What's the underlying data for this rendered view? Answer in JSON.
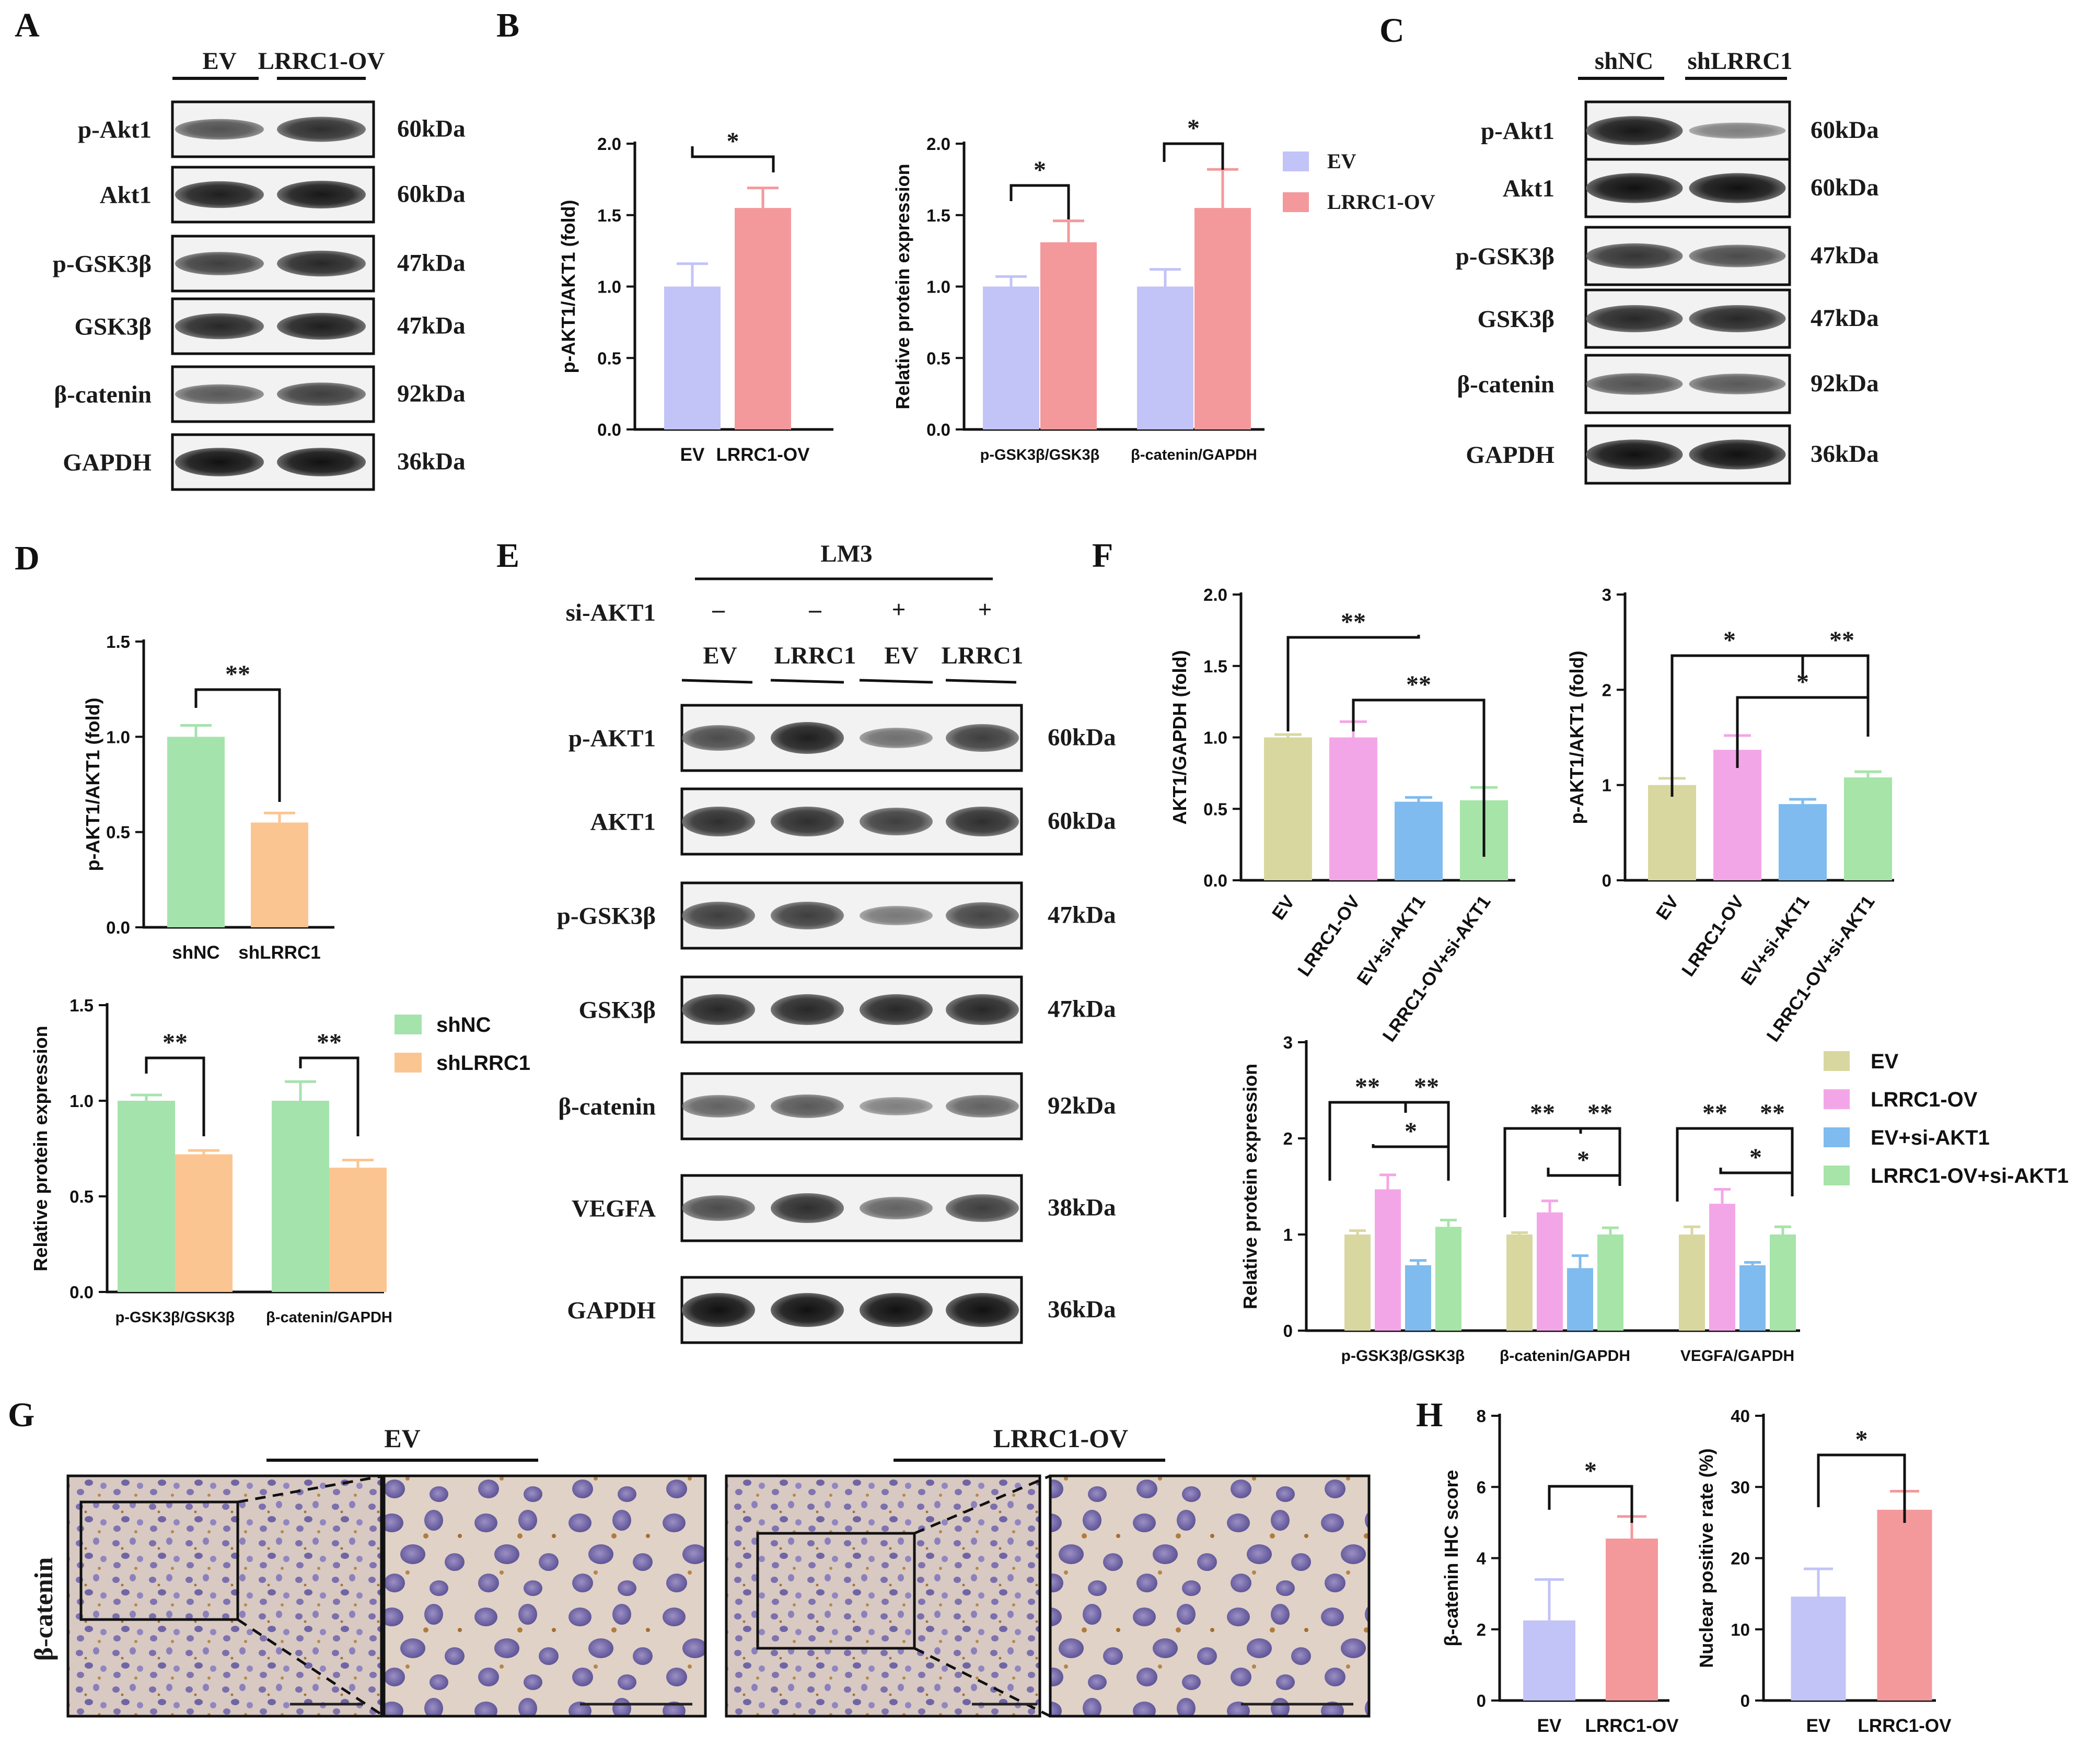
{
  "colors": {
    "ev_purple": "#c2c3f7",
    "ov_red": "#f3999c",
    "shnc_green": "#a5e3ad",
    "shlrrc1_orange": "#fbc591",
    "f_ev": "#d9d7a0",
    "f_ov": "#f3a6e7",
    "f_evsi": "#7fbbee",
    "f_ovsi": "#a6e4a8"
  },
  "panels": {
    "A": "A",
    "B": "B",
    "C": "C",
    "D": "D",
    "E": "E",
    "F": "F",
    "G": "G",
    "H": "H"
  },
  "blotA": {
    "groups": [
      "EV",
      "LRRC1-OV"
    ],
    "rows": [
      {
        "label": "p-Akt1",
        "kda": "60kDa"
      },
      {
        "label": "Akt1",
        "kda": "60kDa"
      },
      {
        "label": "p-GSK3β",
        "kda": "47kDa"
      },
      {
        "label": "GSK3β",
        "kda": "47kDa"
      },
      {
        "label": "β-catenin",
        "kda": "92kDa"
      },
      {
        "label": "GAPDH",
        "kda": "36kDa"
      }
    ]
  },
  "blotC": {
    "groups": [
      "shNC",
      "shLRRC1"
    ],
    "rows": [
      {
        "label": "p-Akt1",
        "kda": "60kDa"
      },
      {
        "label": "Akt1",
        "kda": "60kDa"
      },
      {
        "label": "p-GSK3β",
        "kda": "47kDa"
      },
      {
        "label": "GSK3β",
        "kda": "47kDa"
      },
      {
        "label": "β-catenin",
        "kda": "92kDa"
      },
      {
        "label": "GAPDH",
        "kda": "36kDa"
      }
    ]
  },
  "blotE": {
    "cell_line": "LM3",
    "treatment_label": "si-AKT1",
    "treatment_signs": [
      "–",
      "–",
      "+",
      "+"
    ],
    "lanes": [
      "EV",
      "LRRC1",
      "EV",
      "LRRC1"
    ],
    "rows": [
      {
        "label": "p-AKT1",
        "kda": "60kDa"
      },
      {
        "label": "AKT1",
        "kda": "60kDa"
      },
      {
        "label": "p-GSK3β",
        "kda": "47kDa"
      },
      {
        "label": "GSK3β",
        "kda": "47kDa"
      },
      {
        "label": "β-catenin",
        "kda": "92kDa"
      },
      {
        "label": "VEGFA",
        "kda": "38kDa"
      },
      {
        "label": "GAPDH",
        "kda": "36kDa"
      }
    ]
  },
  "ihcG": {
    "stain_label": "β-catenin",
    "groups": [
      "EV",
      "LRRC1-OV"
    ]
  },
  "legends": {
    "B": [
      "EV",
      "LRRC1-OV"
    ],
    "D": [
      "shNC",
      "shLRRC1"
    ],
    "F": [
      "EV",
      "LRRC1-OV",
      "EV+si-AKT1",
      "LRRC1-OV+si-AKT1"
    ]
  },
  "chart_data": [
    {
      "id": "B1",
      "type": "bar",
      "title": "",
      "ylabel": "p-AKT1/AKT1 (fold)",
      "ylim": [
        0,
        2.0
      ],
      "yticks": [
        "0.0",
        "0.5",
        "1.0",
        "1.5",
        "2.0"
      ],
      "categories": [
        "EV",
        "LRRC1-OV"
      ],
      "values": [
        1.0,
        1.55
      ],
      "errors": [
        0.16,
        0.14
      ],
      "significance": [
        {
          "from": "EV",
          "to": "LRRC1-OV",
          "label": "*"
        }
      ]
    },
    {
      "id": "B2",
      "type": "bar",
      "title": "",
      "ylabel": "Relative protein expression",
      "ylim": [
        0,
        2.0
      ],
      "yticks": [
        "0.0",
        "0.5",
        "1.0",
        "1.5",
        "2.0"
      ],
      "categories": [
        "p-GSK3β/GSK3β",
        "β-catenin/GAPDH"
      ],
      "series": [
        {
          "name": "EV",
          "values": [
            1.0,
            1.0
          ],
          "errors": [
            0.07,
            0.12
          ]
        },
        {
          "name": "LRRC1-OV",
          "values": [
            1.31,
            1.55
          ],
          "errors": [
            0.15,
            0.27
          ]
        }
      ],
      "significance": [
        {
          "group": "p-GSK3β/GSK3β",
          "label": "*"
        },
        {
          "group": "β-catenin/GAPDH",
          "label": "*"
        }
      ]
    },
    {
      "id": "D1",
      "type": "bar",
      "title": "",
      "ylabel": "p-AKT1/AKT1 (fold)",
      "ylim": [
        0,
        1.5
      ],
      "yticks": [
        "0.0",
        "0.5",
        "1.0",
        "1.5"
      ],
      "categories": [
        "shNC",
        "shLRRC1"
      ],
      "values": [
        1.0,
        0.55
      ],
      "errors": [
        0.06,
        0.05
      ],
      "significance": [
        {
          "from": "shNC",
          "to": "shLRRC1",
          "label": "**"
        }
      ]
    },
    {
      "id": "D2",
      "type": "bar",
      "title": "",
      "ylabel": "Relative protein expression",
      "ylim": [
        0,
        1.5
      ],
      "yticks": [
        "0.0",
        "0.5",
        "1.0",
        "1.5"
      ],
      "categories": [
        "p-GSK3β/GSK3β",
        "β-catenin/GAPDH"
      ],
      "series": [
        {
          "name": "shNC",
          "values": [
            1.0,
            1.0
          ],
          "errors": [
            0.03,
            0.1
          ]
        },
        {
          "name": "shLRRC1",
          "values": [
            0.72,
            0.65
          ],
          "errors": [
            0.02,
            0.04
          ]
        }
      ],
      "significance": [
        {
          "group": "p-GSK3β/GSK3β",
          "label": "**"
        },
        {
          "group": "β-catenin/GAPDH",
          "label": "**"
        }
      ]
    },
    {
      "id": "F1",
      "type": "bar",
      "title": "",
      "ylabel": "AKT1/GAPDH (fold)",
      "ylim": [
        0,
        2.0
      ],
      "yticks": [
        "0.0",
        "0.5",
        "1.0",
        "1.5",
        "2.0"
      ],
      "categories": [
        "EV",
        "LRRC1-OV",
        "EV+si-AKT1",
        "LRRC1-OV+si-AKT1"
      ],
      "values": [
        1.0,
        1.0,
        0.55,
        0.56
      ],
      "errors": [
        0.02,
        0.11,
        0.03,
        0.09
      ],
      "significance": [
        {
          "from": "EV",
          "to": "EV+si-AKT1",
          "label": "**"
        },
        {
          "from": "LRRC1-OV",
          "to": "LRRC1-OV+si-AKT1",
          "label": "**"
        }
      ]
    },
    {
      "id": "F2",
      "type": "bar",
      "title": "",
      "ylabel": "p-AKT1/AKT1 (fold)",
      "ylim": [
        0,
        3
      ],
      "yticks": [
        "0",
        "1",
        "2",
        "3"
      ],
      "categories": [
        "EV",
        "LRRC1-OV",
        "EV+si-AKT1",
        "LRRC1-OV+si-AKT1"
      ],
      "values": [
        1.0,
        1.37,
        0.8,
        1.08
      ],
      "errors": [
        0.07,
        0.15,
        0.05,
        0.06
      ],
      "significance": [
        {
          "from": "EV",
          "to": "EV+si-AKT1",
          "label": "*"
        },
        {
          "from": "EV+si-AKT1",
          "to": "LRRC1-OV+si-AKT1",
          "label": "**"
        },
        {
          "from": "LRRC1-OV",
          "to": "LRRC1-OV+si-AKT1",
          "label": "*"
        }
      ]
    },
    {
      "id": "F3",
      "type": "bar",
      "title": "",
      "ylabel": "Relative protein expression",
      "ylim": [
        0,
        3
      ],
      "yticks": [
        "0",
        "1",
        "2",
        "3"
      ],
      "categories": [
        "p-GSK3β/GSK3β",
        "β-catenin/GAPDH",
        "VEGFA/GAPDH"
      ],
      "series": [
        {
          "name": "EV",
          "values": [
            1.0,
            1.0,
            1.0
          ],
          "errors": [
            0.04,
            0.02,
            0.08
          ]
        },
        {
          "name": "LRRC1-OV",
          "values": [
            1.47,
            1.23,
            1.32
          ],
          "errors": [
            0.15,
            0.12,
            0.15
          ]
        },
        {
          "name": "EV+si-AKT1",
          "values": [
            0.68,
            0.65,
            0.68
          ],
          "errors": [
            0.05,
            0.13,
            0.03
          ]
        },
        {
          "name": "LRRC1-OV+si-AKT1",
          "values": [
            1.08,
            1.0,
            1.0
          ],
          "errors": [
            0.07,
            0.07,
            0.08
          ]
        }
      ],
      "significance": [
        {
          "label": "**"
        },
        {
          "label": "**"
        },
        {
          "label": "*"
        }
      ]
    },
    {
      "id": "H1",
      "type": "bar",
      "title": "",
      "ylabel": "β-catenin IHC score",
      "ylim": [
        0,
        8
      ],
      "yticks": [
        "0",
        "2",
        "4",
        "6",
        "8"
      ],
      "categories": [
        "EV",
        "LRRC1-OV"
      ],
      "values": [
        2.25,
        4.55
      ],
      "errors": [
        1.15,
        0.62
      ],
      "significance": [
        {
          "from": "EV",
          "to": "LRRC1-OV",
          "label": "*"
        }
      ]
    },
    {
      "id": "H2",
      "type": "bar",
      "title": "",
      "ylabel": "Nuclear positive rate (%)",
      "ylim": [
        0,
        40
      ],
      "yticks": [
        "0",
        "10",
        "20",
        "30",
        "40"
      ],
      "categories": [
        "EV",
        "LRRC1-OV"
      ],
      "values": [
        14.6,
        26.8
      ],
      "errors": [
        3.9,
        2.6
      ],
      "significance": [
        {
          "from": "EV",
          "to": "LRRC1-OV",
          "label": "*"
        }
      ]
    }
  ]
}
